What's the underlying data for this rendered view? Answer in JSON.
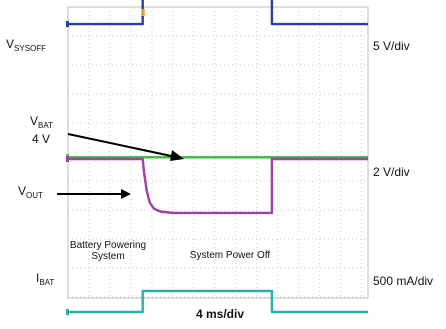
{
  "chart_data": {
    "type": "line",
    "x_scale": "4 ms/div",
    "channels": [
      {
        "name_main": "V",
        "name_sub": "SYSOFF",
        "scale": "5 V/div",
        "color": "#2a3dab",
        "x_div": [
          0,
          3.56,
          3.56,
          9.72,
          9.72,
          14.3
        ],
        "y_div": [
          1.17,
          1.17,
          2.26,
          2.26,
          1.17,
          1.17
        ]
      },
      {
        "name_main": "V",
        "name_sub": "BAT",
        "value": "4 V",
        "scale": "2 V/div",
        "color": "#3cb83c",
        "x_div": [
          0,
          14.3
        ],
        "y_div": [
          0.05,
          0.05
        ]
      },
      {
        "name_main": "V",
        "name_sub": "OUT",
        "color": "#a23ea8",
        "x_div": [
          0,
          3.56,
          3.62,
          3.75,
          3.9,
          4.1,
          4.4,
          5.0,
          9.72,
          9.72,
          14.3
        ],
        "y_div": [
          0.0,
          0.0,
          -0.35,
          -0.9,
          -1.25,
          -1.42,
          -1.5,
          -1.54,
          -1.54,
          0.0,
          0.0
        ]
      },
      {
        "name_main": "I",
        "name_sub": "BAT",
        "scale": "500 mA/div",
        "color": "#2bb0a8",
        "x_div": [
          0,
          3.56,
          3.56,
          9.72,
          9.72,
          14.3
        ],
        "y_div": [
          -0.6,
          -0.6,
          0.0,
          0.0,
          -0.6,
          -0.6
        ]
      }
    ],
    "annotations": {
      "battery_line1": "Battery Powering",
      "battery_line2": "System",
      "power_off": "System Power Off"
    },
    "grid": true
  }
}
